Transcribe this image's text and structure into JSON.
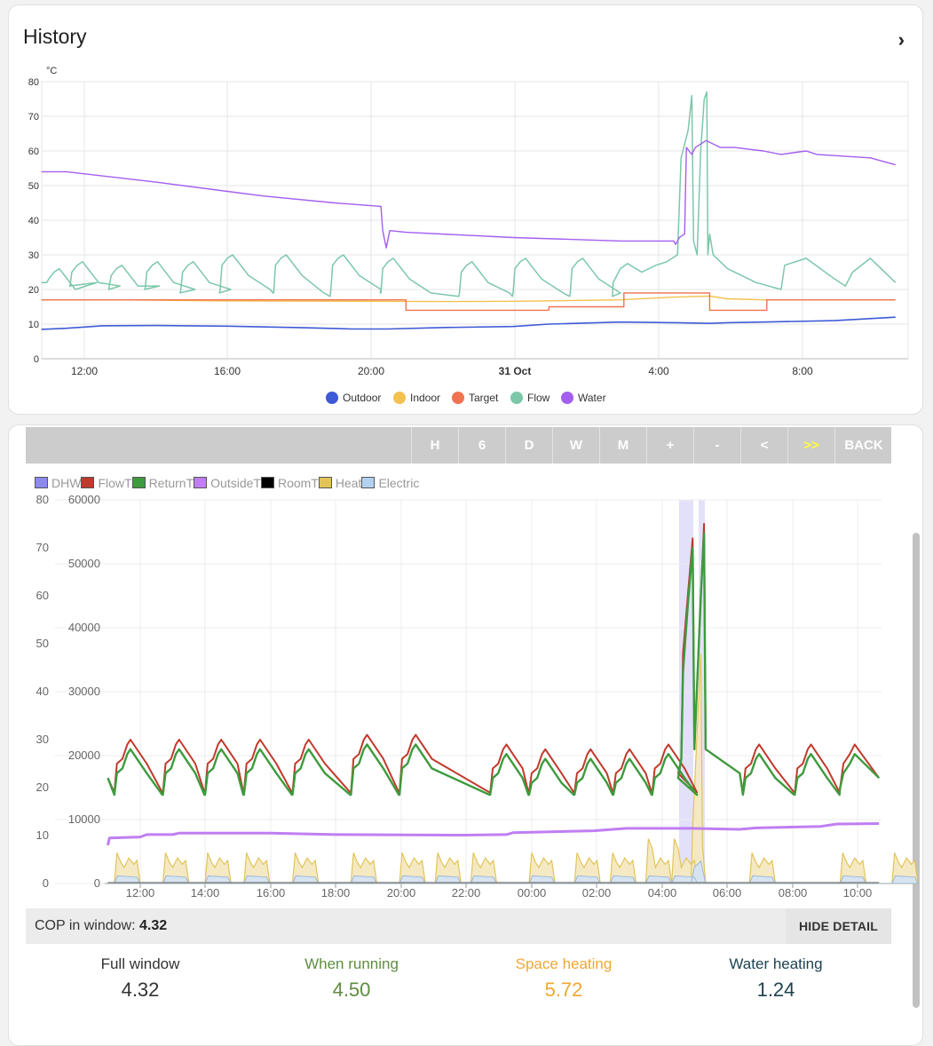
{
  "history": {
    "title": "History",
    "unit": "°C",
    "y_ticks": [
      "80",
      "70",
      "60",
      "50",
      "40",
      "30",
      "20",
      "10",
      "0"
    ],
    "x_ticks": [
      "12:00",
      "16:00",
      "20:00",
      "31 Oct",
      "4:00",
      "8:00"
    ],
    "legend": [
      {
        "label": "Outdoor",
        "color": "#3f5ad6"
      },
      {
        "label": "Indoor",
        "color": "#f2c14e"
      },
      {
        "label": "Target",
        "color": "#f07350"
      },
      {
        "label": "Flow",
        "color": "#7cc7a9"
      },
      {
        "label": "Water",
        "color": "#a35ef0"
      }
    ]
  },
  "toolbar": {
    "buttons": [
      "H",
      "6",
      "D",
      "W",
      "M",
      "+",
      "-",
      "<",
      ">>",
      "BACK"
    ],
    "active_color": "#ffff33"
  },
  "detail": {
    "legend": [
      {
        "label": "DHW",
        "color": "#8a8af0"
      },
      {
        "label": "FlowT",
        "color": "#c0392b"
      },
      {
        "label": "ReturnT",
        "color": "#3d9b3d"
      },
      {
        "label": "OutsideT",
        "color": "#c07ef2"
      },
      {
        "label": "RoomT",
        "color": "#000000"
      },
      {
        "label": "Heat",
        "color": "#e2c45a"
      },
      {
        "label": "Electric",
        "color": "#b3d1f0"
      }
    ],
    "y_left": [
      "80",
      "70",
      "60",
      "50",
      "40",
      "30",
      "20",
      "10",
      "0"
    ],
    "y_right": [
      "60000",
      "50000",
      "40000",
      "30000",
      "20000",
      "10000",
      "0"
    ],
    "x_ticks": [
      "12:00",
      "14:00",
      "16:00",
      "18:00",
      "20:00",
      "22:00",
      "00:00",
      "02:00",
      "04:00",
      "06:00",
      "08:00",
      "10:00"
    ]
  },
  "cop": {
    "label": "COP in window:",
    "value": "4.32",
    "hide_label": "HIDE DETAIL"
  },
  "stats": [
    {
      "label": "Full window",
      "value": "4.32",
      "color": "#333333"
    },
    {
      "label": "When running",
      "value": "4.50",
      "color": "#5e8d3f"
    },
    {
      "label": "Space heating",
      "value": "5.72",
      "color": "#f0a732"
    },
    {
      "label": "Water heating",
      "value": "1.24",
      "color": "#1e4250"
    }
  ],
  "chart_data": [
    {
      "type": "line",
      "title": "History",
      "ylabel": "°C",
      "ylim": [
        0,
        80
      ],
      "x": [
        "10:50",
        "12:00",
        "16:00",
        "20:00",
        "20:20",
        "21:00",
        "00:00",
        "03:00",
        "04:20",
        "04:40",
        "05:00",
        "05:30",
        "06:30",
        "08:00",
        "10:50"
      ],
      "series": [
        {
          "name": "Outdoor",
          "values": [
            8.5,
            9,
            9.5,
            8.5,
            8.5,
            8.5,
            9,
            10,
            10.5,
            10.5,
            10,
            10.5,
            10.5,
            10.5,
            12
          ]
        },
        {
          "name": "Indoor",
          "values": [
            17,
            17,
            16.5,
            16.5,
            16.5,
            16.5,
            16.5,
            17,
            17.5,
            18,
            17,
            17,
            17,
            17,
            17
          ]
        },
        {
          "name": "Target",
          "values": [
            17,
            17,
            17,
            17,
            17,
            14,
            15,
            19,
            19,
            19,
            17,
            14,
            17,
            17,
            17
          ]
        },
        {
          "name": "Flow",
          "values": [
            22,
            29,
            30,
            30,
            20,
            18,
            28,
            26,
            27,
            75,
            77,
            30,
            20,
            29,
            22
          ]
        },
        {
          "name": "Water",
          "values": [
            54,
            53,
            47,
            44,
            37,
            36.5,
            35,
            34,
            34,
            60,
            63,
            61,
            60,
            59,
            56
          ]
        }
      ],
      "grid": true,
      "legend": "bottom"
    },
    {
      "type": "line",
      "x": [
        "11:00",
        "12:00",
        "14:00",
        "16:00",
        "18:00",
        "20:00",
        "22:00",
        "00:00",
        "02:00",
        "04:00",
        "04:50",
        "05:20",
        "06:00",
        "08:00",
        "10:00",
        "10:50"
      ],
      "ylim": [
        0,
        80
      ],
      "y2lim": [
        0,
        60000
      ],
      "series": [
        {
          "name": "FlowT",
          "values": [
            22,
            31,
            30,
            30,
            30,
            31,
            30,
            22,
            27,
            28,
            75,
            76,
            28,
            29,
            29,
            23
          ]
        },
        {
          "name": "ReturnT",
          "values": [
            22,
            29,
            28,
            28,
            28,
            28,
            29,
            22,
            25,
            25,
            72,
            74,
            27,
            27,
            27,
            23
          ]
        },
        {
          "name": "OutsideT",
          "values": [
            9,
            10,
            10.5,
            10.5,
            10,
            10,
            10,
            10,
            10.5,
            11.5,
            11.5,
            11.5,
            11.5,
            12,
            12.5,
            12.5
          ]
        },
        {
          "name": "Heat",
          "values": [
            0,
            4000,
            5000,
            4500,
            4500,
            5000,
            0,
            4500,
            4000,
            5000,
            8000,
            36000,
            0,
            4500,
            4500,
            0
          ]
        },
        {
          "name": "Electric",
          "values": [
            0,
            1000,
            1000,
            1000,
            1000,
            1000,
            0,
            1000,
            1000,
            1000,
            3500,
            3000,
            0,
            1000,
            1000,
            0
          ]
        },
        {
          "name": "DHW",
          "values": [
            0,
            0,
            0,
            0,
            0,
            0,
            0,
            0,
            0,
            0,
            1,
            1,
            0,
            0,
            0,
            0
          ]
        }
      ],
      "grid": true,
      "legend": "top-left"
    }
  ]
}
